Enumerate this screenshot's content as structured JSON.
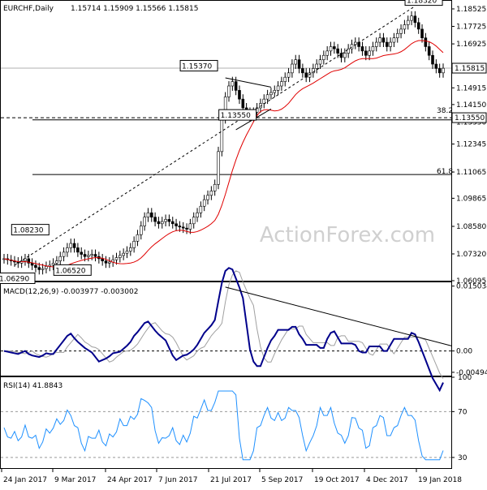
{
  "header": {
    "symbol": "EURCHF,Daily",
    "ohlc": "1.15714 1.15909 1.15566 1.15815"
  },
  "watermark": "ActionForex.com",
  "chart_data": [
    {
      "type": "candlestick",
      "title": "EURCHF,Daily",
      "ylim": [
        1.06095,
        1.18895
      ],
      "y_ticks": [
        "1.18525",
        "1.17725",
        "1.16925",
        "1.14915",
        "1.14150",
        "1.13350",
        "1.12345",
        "1.11065",
        "1.09865",
        "1.08580",
        "1.07320",
        "1.06095"
      ],
      "x_ticks": [
        "24 Jan 2017",
        "9 Mar 2017",
        "24 Apr 2017",
        "7 Jun 2017",
        "21 Jul 2017",
        "5 Sep 2017",
        "19 Oct 2017",
        "4 Dec 2017",
        "19 Jan 2018"
      ],
      "current_price": "1.15815",
      "level_label": "1.13550",
      "price_labels": [
        "1.18320",
        "1.15370",
        "1.13550",
        "1.08230",
        "1.06520",
        "1.06290"
      ],
      "fib_labels": [
        "38.2",
        "61.8"
      ],
      "fib_levels": [
        1.1345,
        1.1095
      ],
      "close": [
        1.071,
        1.0705,
        1.07,
        1.0695,
        1.069,
        1.07,
        1.071,
        1.069,
        1.068,
        1.067,
        1.066,
        1.0665,
        1.0675,
        1.068,
        1.069,
        1.07,
        1.072,
        1.074,
        1.076,
        1.078,
        1.076,
        1.074,
        1.073,
        1.072,
        1.0725,
        1.073,
        1.072,
        1.071,
        1.07,
        1.069,
        1.0695,
        1.0705,
        1.0715,
        1.0725,
        1.0735,
        1.0745,
        1.076,
        1.079,
        1.082,
        1.086,
        1.09,
        1.092,
        1.09,
        1.088,
        1.087,
        1.088,
        1.089,
        1.088,
        1.087,
        1.086,
        1.0855,
        1.085,
        1.0845,
        1.087,
        1.09,
        1.092,
        1.095,
        1.098,
        1.1,
        1.102,
        1.105,
        1.12,
        1.135,
        1.145,
        1.15,
        1.152,
        1.148,
        1.144,
        1.14,
        1.138,
        1.136,
        1.138,
        1.14,
        1.142,
        1.144,
        1.146,
        1.147,
        1.148,
        1.15,
        1.152,
        1.154,
        1.156,
        1.16,
        1.162,
        1.158,
        1.156,
        1.154,
        1.156,
        1.158,
        1.16,
        1.162,
        1.164,
        1.166,
        1.168,
        1.167,
        1.165,
        1.163,
        1.165,
        1.167,
        1.169,
        1.17,
        1.168,
        1.166,
        1.164,
        1.166,
        1.168,
        1.17,
        1.172,
        1.17,
        1.168,
        1.17,
        1.172,
        1.174,
        1.176,
        1.178,
        1.18,
        1.182,
        1.179,
        1.176,
        1.172,
        1.168,
        1.164,
        1.16,
        1.158,
        1.156,
        1.1581
      ]
    },
    {
      "type": "line",
      "title": "MACD(12,26,9) -0.003977 -0.003002",
      "ylim": [
        -0.00571,
        0.01591
      ],
      "y_ticks": [
        "0.015034",
        "0.00",
        "-0.004944"
      ]
    },
    {
      "type": "line",
      "title": "RSI(14) 41.8843",
      "ylim": [
        20,
        100
      ],
      "y_ticks": [
        "100",
        "70",
        "30"
      ],
      "guide_levels": [
        70,
        30
      ]
    }
  ],
  "colors": {
    "sma": "#e00000",
    "macd": "#00008b",
    "signal": "#a0a0a0",
    "rsi": "#1e90ff",
    "grid": "#000000",
    "watermark": "#d0d0d0"
  }
}
